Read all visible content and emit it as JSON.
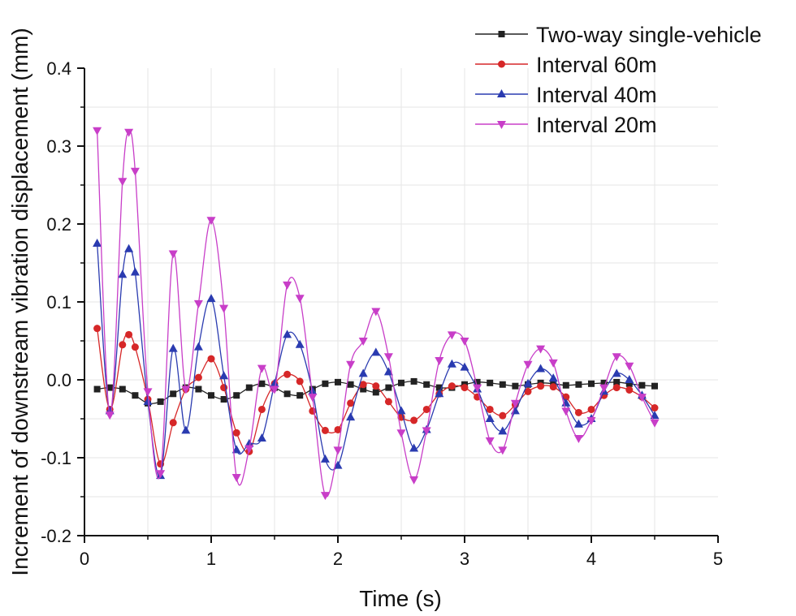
{
  "chart_data": {
    "type": "line",
    "title": "",
    "xlabel": "Time (s)",
    "ylabel": "Increment of downstream vibration displacement (mm)",
    "xlim": [
      0,
      5
    ],
    "ylim": [
      -0.2,
      0.4
    ],
    "x_ticks": [
      "0",
      "1",
      "2",
      "3",
      "4",
      "5"
    ],
    "y_ticks": [
      "-0.2",
      "-0.1",
      "0.0",
      "0.1",
      "0.2",
      "0.3",
      "0.4"
    ],
    "x_tick_values": [
      0,
      1,
      2,
      3,
      4,
      5
    ],
    "y_tick_values": [
      -0.2,
      -0.1,
      0.0,
      0.1,
      0.2,
      0.3,
      0.4
    ],
    "grid": true,
    "legend_position": "top-right",
    "series": [
      {
        "name": "Two-way single-vehicle",
        "color": "#222222",
        "marker": "square",
        "points": [
          [
            0.1,
            -0.012
          ],
          [
            0.2,
            -0.01
          ],
          [
            0.3,
            -0.012
          ],
          [
            0.4,
            -0.02
          ],
          [
            0.5,
            -0.03
          ],
          [
            0.6,
            -0.028
          ],
          [
            0.7,
            -0.018
          ],
          [
            0.8,
            -0.01
          ],
          [
            0.9,
            -0.012
          ],
          [
            1.0,
            -0.02
          ],
          [
            1.1,
            -0.025
          ],
          [
            1.2,
            -0.02
          ],
          [
            1.3,
            -0.01
          ],
          [
            1.4,
            -0.005
          ],
          [
            1.5,
            -0.01
          ],
          [
            1.6,
            -0.018
          ],
          [
            1.7,
            -0.02
          ],
          [
            1.8,
            -0.012
          ],
          [
            1.9,
            -0.005
          ],
          [
            2.0,
            -0.003
          ],
          [
            2.1,
            -0.006
          ],
          [
            2.2,
            -0.012
          ],
          [
            2.3,
            -0.016
          ],
          [
            2.4,
            -0.01
          ],
          [
            2.5,
            -0.004
          ],
          [
            2.6,
            -0.002
          ],
          [
            2.7,
            -0.006
          ],
          [
            2.8,
            -0.01
          ],
          [
            2.9,
            -0.01
          ],
          [
            3.0,
            -0.006
          ],
          [
            3.1,
            -0.003
          ],
          [
            3.2,
            -0.004
          ],
          [
            3.3,
            -0.006
          ],
          [
            3.4,
            -0.008
          ],
          [
            3.5,
            -0.006
          ],
          [
            3.6,
            -0.004
          ],
          [
            3.7,
            -0.005
          ],
          [
            3.8,
            -0.007
          ],
          [
            3.9,
            -0.006
          ],
          [
            4.0,
            -0.005
          ],
          [
            4.1,
            -0.004
          ],
          [
            4.2,
            -0.003
          ],
          [
            4.3,
            -0.005
          ],
          [
            4.4,
            -0.007
          ],
          [
            4.5,
            -0.008
          ]
        ]
      },
      {
        "name": "Interval 60m",
        "color": "#d62728",
        "marker": "circle",
        "points": [
          [
            0.1,
            0.066
          ],
          [
            0.2,
            -0.038
          ],
          [
            0.3,
            0.045
          ],
          [
            0.35,
            0.058
          ],
          [
            0.4,
            0.042
          ],
          [
            0.5,
            -0.025
          ],
          [
            0.6,
            -0.108
          ],
          [
            0.7,
            -0.055
          ],
          [
            0.8,
            -0.012
          ],
          [
            0.9,
            0.003
          ],
          [
            1.0,
            0.027
          ],
          [
            1.1,
            -0.01
          ],
          [
            1.2,
            -0.068
          ],
          [
            1.3,
            -0.092
          ],
          [
            1.4,
            -0.038
          ],
          [
            1.5,
            -0.005
          ],
          [
            1.6,
            0.007
          ],
          [
            1.7,
            -0.002
          ],
          [
            1.8,
            -0.04
          ],
          [
            1.9,
            -0.065
          ],
          [
            2.0,
            -0.064
          ],
          [
            2.1,
            -0.03
          ],
          [
            2.2,
            -0.006
          ],
          [
            2.3,
            -0.008
          ],
          [
            2.4,
            -0.028
          ],
          [
            2.5,
            -0.048
          ],
          [
            2.6,
            -0.052
          ],
          [
            2.7,
            -0.038
          ],
          [
            2.8,
            -0.018
          ],
          [
            2.9,
            -0.008
          ],
          [
            3.0,
            -0.01
          ],
          [
            3.1,
            -0.022
          ],
          [
            3.2,
            -0.038
          ],
          [
            3.3,
            -0.046
          ],
          [
            3.4,
            -0.032
          ],
          [
            3.5,
            -0.015
          ],
          [
            3.6,
            -0.008
          ],
          [
            3.7,
            -0.009
          ],
          [
            3.8,
            -0.022
          ],
          [
            3.9,
            -0.042
          ],
          [
            4.0,
            -0.038
          ],
          [
            4.1,
            -0.02
          ],
          [
            4.2,
            -0.01
          ],
          [
            4.3,
            -0.013
          ],
          [
            4.4,
            -0.022
          ],
          [
            4.5,
            -0.036
          ]
        ]
      },
      {
        "name": "Interval 40m",
        "color": "#2a3bb0",
        "marker": "triangle-up",
        "points": [
          [
            0.1,
            0.175
          ],
          [
            0.2,
            -0.04
          ],
          [
            0.3,
            0.135
          ],
          [
            0.35,
            0.168
          ],
          [
            0.4,
            0.138
          ],
          [
            0.5,
            -0.028
          ],
          [
            0.6,
            -0.123
          ],
          [
            0.7,
            0.04
          ],
          [
            0.8,
            -0.065
          ],
          [
            0.9,
            0.042
          ],
          [
            1.0,
            0.104
          ],
          [
            1.1,
            0.005
          ],
          [
            1.2,
            -0.09
          ],
          [
            1.3,
            -0.082
          ],
          [
            1.4,
            -0.075
          ],
          [
            1.5,
            -0.005
          ],
          [
            1.6,
            0.058
          ],
          [
            1.7,
            0.045
          ],
          [
            1.8,
            -0.015
          ],
          [
            1.9,
            -0.102
          ],
          [
            2.0,
            -0.11
          ],
          [
            2.1,
            -0.048
          ],
          [
            2.2,
            0.008
          ],
          [
            2.3,
            0.035
          ],
          [
            2.4,
            0.01
          ],
          [
            2.5,
            -0.04
          ],
          [
            2.6,
            -0.088
          ],
          [
            2.7,
            -0.064
          ],
          [
            2.8,
            -0.018
          ],
          [
            2.9,
            0.02
          ],
          [
            3.0,
            0.016
          ],
          [
            3.1,
            -0.012
          ],
          [
            3.2,
            -0.05
          ],
          [
            3.3,
            -0.066
          ],
          [
            3.4,
            -0.04
          ],
          [
            3.5,
            -0.005
          ],
          [
            3.6,
            0.014
          ],
          [
            3.7,
            0.002
          ],
          [
            3.8,
            -0.03
          ],
          [
            3.9,
            -0.057
          ],
          [
            4.0,
            -0.05
          ],
          [
            4.1,
            -0.015
          ],
          [
            4.2,
            0.008
          ],
          [
            4.3,
            0.0
          ],
          [
            4.4,
            -0.02
          ],
          [
            4.5,
            -0.046
          ]
        ]
      },
      {
        "name": "Interval 20m",
        "color": "#c83ec8",
        "marker": "triangle-down",
        "points": [
          [
            0.1,
            0.32
          ],
          [
            0.2,
            -0.045
          ],
          [
            0.3,
            0.255
          ],
          [
            0.35,
            0.318
          ],
          [
            0.4,
            0.268
          ],
          [
            0.5,
            -0.015
          ],
          [
            0.6,
            -0.12
          ],
          [
            0.7,
            0.162
          ],
          [
            0.8,
            -0.012
          ],
          [
            0.9,
            0.098
          ],
          [
            1.0,
            0.205
          ],
          [
            1.1,
            0.092
          ],
          [
            1.2,
            -0.125
          ],
          [
            1.3,
            -0.088
          ],
          [
            1.4,
            0.015
          ],
          [
            1.5,
            -0.012
          ],
          [
            1.6,
            0.122
          ],
          [
            1.7,
            0.105
          ],
          [
            1.8,
            -0.022
          ],
          [
            1.9,
            -0.148
          ],
          [
            2.0,
            -0.09
          ],
          [
            2.1,
            0.02
          ],
          [
            2.2,
            0.05
          ],
          [
            2.3,
            0.088
          ],
          [
            2.4,
            0.03
          ],
          [
            2.5,
            -0.068
          ],
          [
            2.6,
            -0.128
          ],
          [
            2.7,
            -0.065
          ],
          [
            2.8,
            0.025
          ],
          [
            2.9,
            0.058
          ],
          [
            3.0,
            0.05
          ],
          [
            3.1,
            -0.01
          ],
          [
            3.2,
            -0.078
          ],
          [
            3.3,
            -0.09
          ],
          [
            3.4,
            -0.03
          ],
          [
            3.5,
            0.02
          ],
          [
            3.6,
            0.04
          ],
          [
            3.7,
            0.022
          ],
          [
            3.8,
            -0.04
          ],
          [
            3.9,
            -0.075
          ],
          [
            4.0,
            -0.052
          ],
          [
            4.1,
            -0.01
          ],
          [
            4.2,
            0.03
          ],
          [
            4.3,
            0.018
          ],
          [
            4.4,
            -0.022
          ],
          [
            4.5,
            -0.055
          ]
        ]
      }
    ]
  }
}
